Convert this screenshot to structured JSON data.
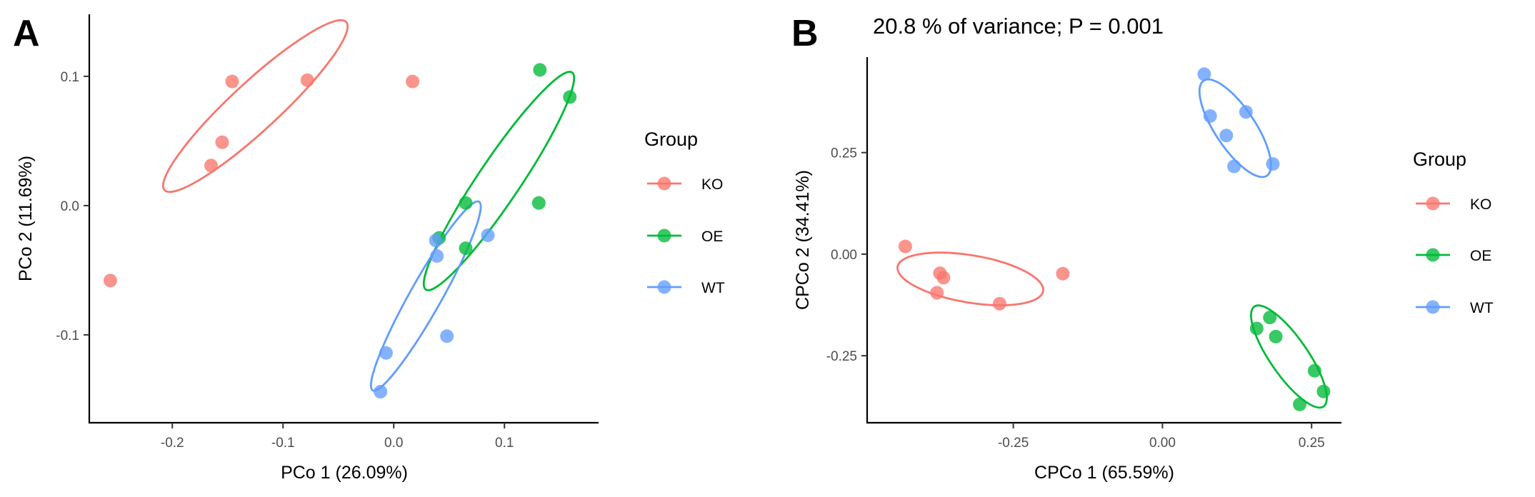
{
  "panels": {
    "a": {
      "letter": "A"
    },
    "b": {
      "letter": "B",
      "title": "20.8 % of variance; P = 0.001"
    }
  },
  "colors": {
    "KO": "#F8766D",
    "OE": "#00BA38",
    "WT": "#619CFF"
  },
  "chart_data": [
    {
      "type": "scatter",
      "xlabel": "PCo 1 (26.09%)",
      "ylabel": "PCo 2 (11.69%)",
      "xlim": [
        -0.275,
        0.185
      ],
      "ylim": [
        -0.168,
        0.148
      ],
      "xticks": [
        -0.2,
        -0.1,
        0.0,
        0.1
      ],
      "xtick_labels": [
        "-0.2",
        "-0.1",
        "0.0",
        "0.1"
      ],
      "yticks": [
        -0.1,
        0.0,
        0.1
      ],
      "ytick_labels": [
        "-0.1",
        "0.0",
        "0.1"
      ],
      "grid": false,
      "legend": {
        "title": "Group",
        "position": "right",
        "entries": [
          "KO",
          "OE",
          "WT"
        ]
      },
      "series": [
        {
          "name": "KO",
          "x": [
            -0.146,
            -0.078,
            -0.155,
            -0.165,
            0.017,
            -0.256
          ],
          "y": [
            0.096,
            0.097,
            0.049,
            0.031,
            0.096,
            -0.058
          ]
        },
        {
          "name": "OE",
          "x": [
            0.132,
            0.159,
            0.065,
            0.131,
            0.041,
            0.065
          ],
          "y": [
            0.105,
            0.084,
            0.002,
            0.002,
            -0.025,
            -0.033
          ]
        },
        {
          "name": "WT",
          "x": [
            0.038,
            0.039,
            0.085,
            0.048,
            -0.007,
            -0.012
          ],
          "y": [
            -0.027,
            -0.039,
            -0.023,
            -0.101,
            -0.114,
            -0.144
          ]
        }
      ],
      "ellipses": [
        {
          "group": "KO",
          "center": [
            -0.125,
            0.077
          ],
          "x_radius_pts": [
            [
              -0.043,
              0.142
            ],
            [
              -0.207,
              0.012
            ]
          ],
          "y_radius_pts": [
            [
              -0.136,
              0.093
            ],
            [
              -0.114,
              0.061
            ]
          ]
        },
        {
          "group": "OE",
          "center": [
            0.095,
            0.019
          ],
          "x_radius_pts": [
            [
              0.161,
              0.103
            ],
            [
              0.029,
              -0.065
            ]
          ],
          "y_radius_pts": [
            [
              0.08,
              0.029
            ],
            [
              0.11,
              0.009
            ]
          ]
        },
        {
          "group": "WT",
          "center": [
            0.029,
            -0.07
          ],
          "x_radius_pts": [
            [
              0.077,
              0.003
            ],
            [
              -0.019,
              -0.143
            ]
          ],
          "y_radius_pts": [
            [
              0.016,
              -0.065
            ],
            [
              0.042,
              -0.075
            ]
          ]
        }
      ]
    },
    {
      "type": "scatter",
      "title": "20.8 % of variance; P = 0.001",
      "xlabel": "CPCo 1 (65.59%)",
      "ylabel": "CPCo 2 (34.41%)",
      "xlim": [
        -0.495,
        0.3
      ],
      "ylim": [
        -0.415,
        0.485
      ],
      "xticks": [
        -0.25,
        0.0,
        0.25
      ],
      "xtick_labels": [
        "-0.25",
        "0.00",
        "0.25"
      ],
      "yticks": [
        -0.25,
        0.0,
        0.25
      ],
      "ytick_labels": [
        "-0.25",
        "0.00",
        "0.25"
      ],
      "grid": false,
      "legend": {
        "title": "Group",
        "position": "right",
        "entries": [
          "KO",
          "OE",
          "WT"
        ]
      },
      "series": [
        {
          "name": "KO",
          "x": [
            -0.431,
            -0.373,
            -0.367,
            -0.378,
            -0.273,
            -0.167
          ],
          "y": [
            0.019,
            -0.047,
            -0.058,
            -0.095,
            -0.122,
            -0.048
          ]
        },
        {
          "name": "OE",
          "x": [
            0.158,
            0.18,
            0.19,
            0.255,
            0.27,
            0.23
          ],
          "y": [
            -0.183,
            -0.156,
            -0.203,
            -0.287,
            -0.338,
            -0.37
          ]
        },
        {
          "name": "WT",
          "x": [
            0.07,
            0.08,
            0.14,
            0.107,
            0.12,
            0.185
          ],
          "y": [
            0.443,
            0.34,
            0.35,
            0.292,
            0.216,
            0.222
          ]
        }
      ],
      "ellipses": [
        {
          "group": "KO",
          "center": [
            -0.322,
            -0.061
          ],
          "x_radius_pts": [
            [
              -0.2,
              -0.091
            ],
            [
              -0.444,
              -0.031
            ]
          ],
          "y_radius_pts": [
            [
              -0.314,
              -0.004
            ],
            [
              -0.33,
              -0.118
            ]
          ]
        },
        {
          "group": "OE",
          "center": [
            0.212,
            -0.252
          ],
          "x_radius_pts": [
            [
              0.27,
              -0.375
            ],
            [
              0.154,
              -0.129
            ]
          ],
          "y_radius_pts": [
            [
              0.242,
              -0.238
            ],
            [
              0.182,
              -0.266
            ]
          ]
        },
        {
          "group": "WT",
          "center": [
            0.122,
            0.31
          ],
          "x_radius_pts": [
            [
              0.175,
              0.193
            ],
            [
              0.069,
              0.427
            ]
          ],
          "y_radius_pts": [
            [
              0.154,
              0.325
            ],
            [
              0.09,
              0.295
            ]
          ]
        }
      ]
    }
  ]
}
